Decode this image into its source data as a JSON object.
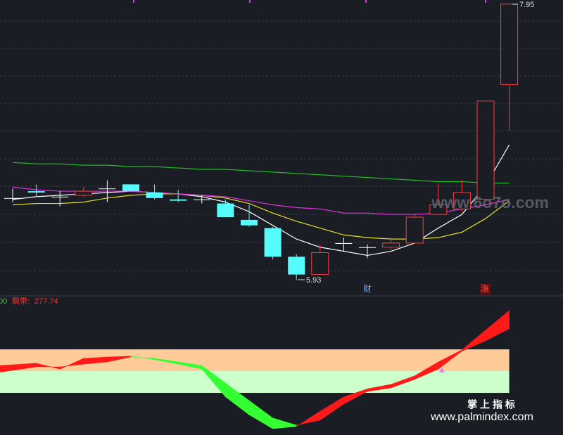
{
  "chart_data": {
    "type": "candlestick",
    "open": [
      6.53,
      6.58,
      6.54,
      6.55,
      6.6,
      6.63,
      6.57,
      6.52,
      6.52,
      6.49,
      6.37,
      6.31,
      6.1,
      5.97,
      6.2,
      6.17,
      6.17,
      6.2,
      6.41,
      6.45,
      6.52,
      7.36
    ],
    "high": [
      6.6,
      6.63,
      6.58,
      6.61,
      6.66,
      6.63,
      6.63,
      6.59,
      6.55,
      6.52,
      6.48,
      6.32,
      6.12,
      6.19,
      6.24,
      6.19,
      6.24,
      6.41,
      6.63,
      6.66,
      7.24,
      7.95
    ],
    "low": [
      6.5,
      6.54,
      6.47,
      6.54,
      6.5,
      6.58,
      6.52,
      6.5,
      6.49,
      6.39,
      6.32,
      6.08,
      5.93,
      5.97,
      6.14,
      6.09,
      6.15,
      6.2,
      6.41,
      6.43,
      6.52,
      7.02
    ],
    "close": [
      6.53,
      6.57,
      6.54,
      6.58,
      6.6,
      6.58,
      6.53,
      6.51,
      6.52,
      6.39,
      6.33,
      6.1,
      5.97,
      6.13,
      6.2,
      6.17,
      6.2,
      6.39,
      6.48,
      6.57,
      7.24,
      7.95
    ],
    "ylim": [
      5.86,
      7.98
    ],
    "up_color": "#ff3c3c",
    "down_color": "#54fcfc",
    "doji_color": "#ffffff",
    "lines": [
      {
        "color": "#ffffff",
        "values": [
          6.52,
          6.54,
          6.55,
          6.56,
          6.57,
          6.58,
          6.57,
          6.56,
          6.54,
          6.5,
          6.43,
          6.33,
          6.23,
          6.17,
          6.14,
          6.11,
          6.14,
          6.2,
          6.31,
          6.41,
          6.62,
          6.92
        ]
      },
      {
        "color": "#e8e020",
        "values": [
          6.48,
          6.49,
          6.49,
          6.5,
          6.53,
          6.55,
          6.56,
          6.56,
          6.55,
          6.53,
          6.49,
          6.42,
          6.36,
          6.31,
          6.26,
          6.24,
          6.23,
          6.23,
          6.24,
          6.28,
          6.38,
          6.51
        ]
      },
      {
        "color": "#e030e0",
        "values": [
          6.61,
          6.59,
          6.58,
          6.58,
          6.58,
          6.58,
          6.57,
          6.56,
          6.55,
          6.54,
          6.51,
          6.48,
          6.46,
          6.45,
          6.42,
          6.42,
          6.41,
          6.41,
          6.42,
          6.45,
          6.48,
          6.52
        ]
      },
      {
        "color": "#20c020",
        "values": [
          6.79,
          6.78,
          6.78,
          6.77,
          6.77,
          6.76,
          6.76,
          6.75,
          6.74,
          6.74,
          6.73,
          6.72,
          6.71,
          6.7,
          6.69,
          6.68,
          6.67,
          6.66,
          6.65,
          6.65,
          6.64,
          6.64
        ]
      }
    ],
    "markers": [
      "财",
      "涨"
    ],
    "indicator": {
      "type": "ribbon",
      "prefix": "00",
      "name_label": "飘带:",
      "fast": [
        155,
        160,
        147,
        171,
        174,
        176,
        168,
        158,
        147,
        85,
        45,
        14,
        19,
        53,
        85,
        103,
        113,
        132,
        163,
        190,
        234,
        277.74
      ],
      "slow": [
        140,
        152,
        152,
        158,
        163,
        174,
        171,
        163,
        155,
        116,
        77,
        38,
        22,
        33,
        69,
        97,
        105,
        124,
        147,
        187,
        210,
        237
      ],
      "ylim": [
        0,
        280.6
      ],
      "bands": [
        {
          "from": 144,
          "to": 191,
          "color": "#ffcc99"
        },
        {
          "from": 94,
          "to": 144,
          "color": "#ccffcc"
        }
      ],
      "rise_color": "#ff1a1a",
      "fall_color": "#33ff33"
    },
    "watermarks": [
      "www.6o7o.com",
      "掌 上 指 标",
      "www.palmindex.com"
    ]
  }
}
